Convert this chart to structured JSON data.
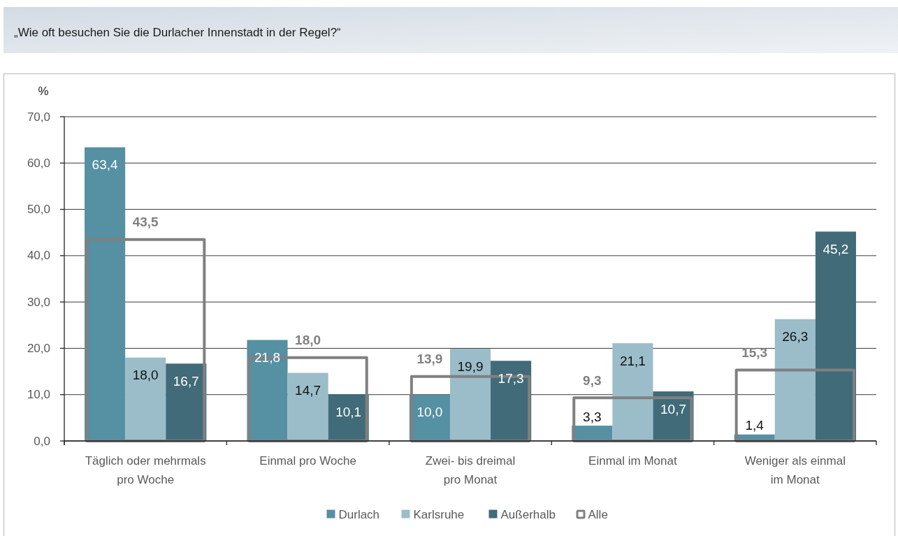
{
  "chart_data": {
    "type": "bar",
    "title": "„Wie oft besuchen Sie die Durlacher Innenstadt in der Regel?“",
    "ylabel": "%",
    "categories": [
      "Täglich oder mehrmals\npro Woche",
      "Einmal pro Woche",
      "Zwei- bis dreimal\npro Monat",
      "Einmal im Monat",
      "Weniger als einmal\nim Monat"
    ],
    "series": [
      {
        "name": "Durlach",
        "color": "#5590a3",
        "values": [
          63.4,
          21.8,
          10.0,
          3.3,
          1.4
        ],
        "value_labels": [
          "63,4",
          "21,8",
          "10,0",
          "3,3",
          "1,4"
        ]
      },
      {
        "name": "Karlsruhe",
        "color": "#9bbdca",
        "values": [
          18.0,
          14.7,
          19.9,
          21.1,
          26.3
        ],
        "value_labels": [
          "18,0",
          "14,7",
          "19,9",
          "21,1",
          "26,3"
        ]
      },
      {
        "name": "Außerhalb",
        "color": "#416b79",
        "values": [
          16.7,
          10.1,
          17.3,
          10.7,
          45.2
        ],
        "value_labels": [
          "16,7",
          "10,1",
          "17,3",
          "10,7",
          "45,2"
        ]
      },
      {
        "name": "Alle",
        "type": "bar",
        "color": "#808080",
        "values": [
          43.5,
          18.0,
          13.9,
          9.3,
          15.3
        ],
        "value_labels": [
          "43,5",
          "18,0",
          "13,9",
          "9,3",
          "15,3"
        ]
      }
    ],
    "ylim": [
      0,
      70
    ],
    "yticks": [
      {
        "value": 0,
        "label": "0,0"
      },
      {
        "value": 10,
        "label": "10,0"
      },
      {
        "value": 20,
        "label": "20,0"
      },
      {
        "value": 30,
        "label": "30,0"
      },
      {
        "value": 40,
        "label": "40,0"
      },
      {
        "value": 50,
        "label": "50,0"
      },
      {
        "value": 60,
        "label": "60,0"
      },
      {
        "value": 70,
        "label": "70,0"
      }
    ],
    "grid": "y",
    "legend": "bottom"
  }
}
